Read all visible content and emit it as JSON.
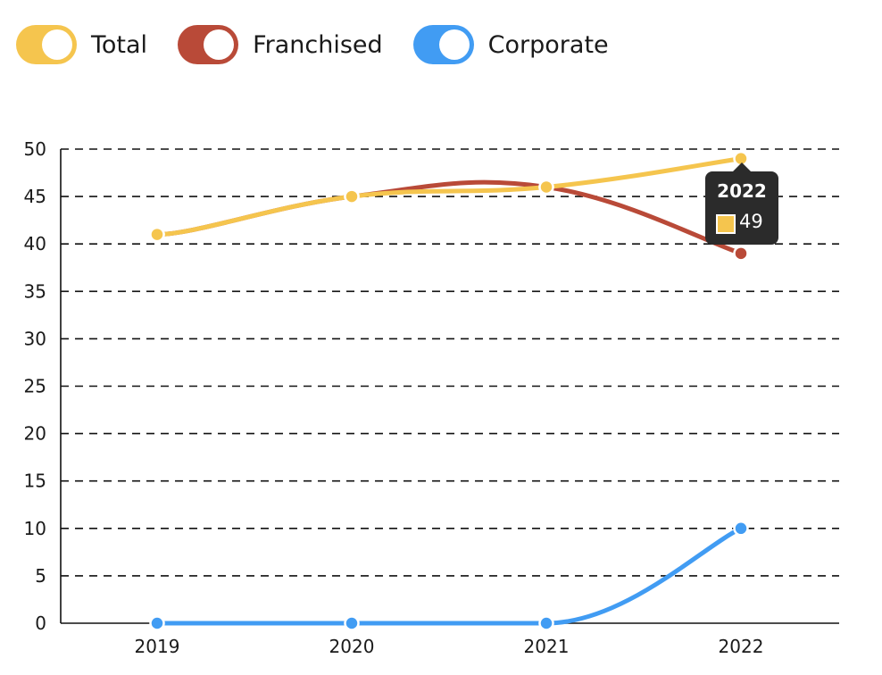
{
  "chart_data": {
    "type": "line",
    "categories": [
      "2019",
      "2020",
      "2021",
      "2022"
    ],
    "series": [
      {
        "name": "Total",
        "values": [
          41,
          45,
          46,
          49
        ],
        "color": "#F5C54E"
      },
      {
        "name": "Franchised",
        "values": [
          41,
          45,
          46,
          39
        ],
        "color": "#B94A38"
      },
      {
        "name": "Corporate",
        "values": [
          0,
          0,
          0,
          10
        ],
        "color": "#419CF3"
      }
    ],
    "ylim": [
      0,
      50
    ],
    "yticks": [
      0,
      5,
      10,
      15,
      20,
      25,
      30,
      35,
      40,
      45,
      50
    ],
    "grid": true,
    "legend_position": "top-left",
    "curve": "smooth"
  },
  "legend": {
    "items": [
      {
        "label": "Total",
        "color": "#F5C54E"
      },
      {
        "label": "Franchised",
        "color": "#B94A38"
      },
      {
        "label": "Corporate",
        "color": "#419CF3"
      }
    ]
  },
  "tooltip": {
    "title": "2022",
    "value": "49",
    "swatch_color": "#F5C54E"
  }
}
